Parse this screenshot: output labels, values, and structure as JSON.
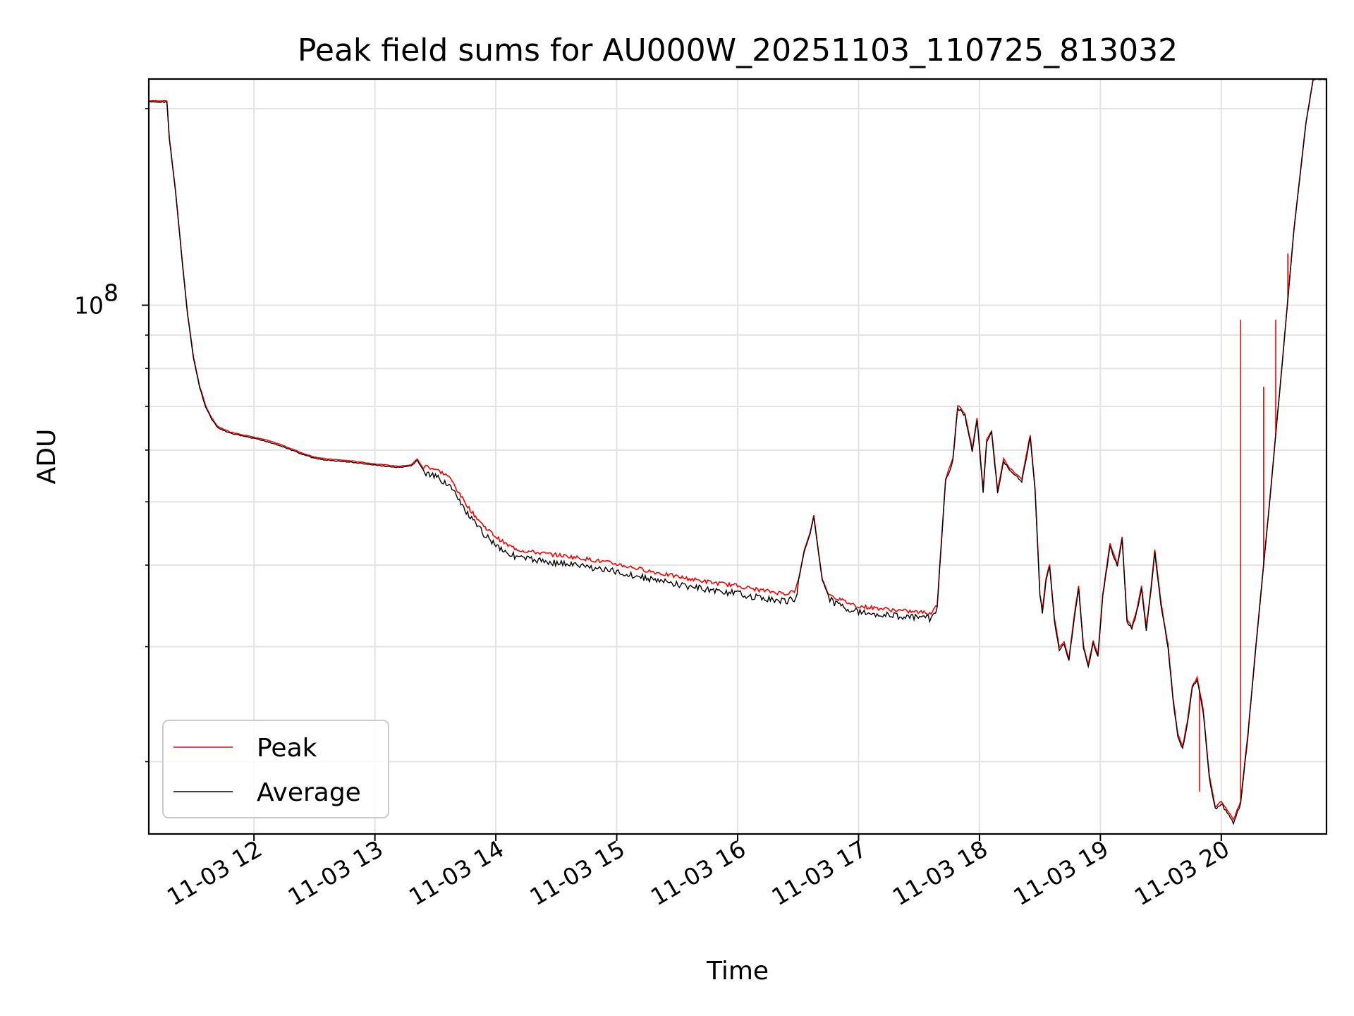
{
  "chart_data": {
    "type": "line",
    "title": "Peak field sums for AU000W_20251103_110725_813032",
    "xlabel": "Time",
    "ylabel": "ADU",
    "yscale": "log",
    "ylim": [
      15500000,
      222000000
    ],
    "xlim": [
      11.13,
      20.87
    ],
    "x_unit": "hour of 2025-11-03",
    "xticks": [
      {
        "value": 12,
        "label": "11-03 12"
      },
      {
        "value": 13,
        "label": "11-03 13"
      },
      {
        "value": 14,
        "label": "11-03 14"
      },
      {
        "value": 15,
        "label": "11-03 15"
      },
      {
        "value": 16,
        "label": "11-03 16"
      },
      {
        "value": 17,
        "label": "11-03 17"
      },
      {
        "value": 18,
        "label": "11-03 18"
      },
      {
        "value": 19,
        "label": "11-03 19"
      },
      {
        "value": 20,
        "label": "11-03 20"
      }
    ],
    "yticks_major": [
      {
        "value": 100000000,
        "label": "10",
        "exp": "8"
      }
    ],
    "yticks_minor": [
      20000000,
      30000000,
      40000000,
      50000000,
      60000000,
      70000000,
      80000000,
      90000000,
      200000000
    ],
    "grid": true,
    "legend_position": "lower-left",
    "legend": [
      {
        "name": "Peak",
        "color": "#ff0000"
      },
      {
        "name": "Average",
        "color": "#000000"
      }
    ],
    "series": [
      {
        "name": "Average",
        "color": "#000000",
        "x": [
          11.13,
          11.28,
          11.3,
          11.35,
          11.4,
          11.45,
          11.5,
          11.55,
          11.6,
          11.65,
          11.7,
          11.8,
          11.9,
          12.0,
          12.1,
          12.2,
          12.3,
          12.4,
          12.5,
          12.6,
          12.8,
          13.0,
          13.2,
          13.3,
          13.35,
          13.4,
          13.5,
          13.6,
          13.65,
          13.7,
          13.8,
          13.9,
          14.0,
          14.1,
          14.2,
          14.4,
          14.6,
          14.8,
          15.0,
          15.2,
          15.4,
          15.6,
          15.8,
          16.0,
          16.2,
          16.4,
          16.48,
          16.55,
          16.6,
          16.63,
          16.66,
          16.7,
          16.75,
          16.8,
          16.9,
          17.0,
          17.2,
          17.4,
          17.6,
          17.65,
          17.68,
          17.72,
          17.78,
          17.82,
          17.88,
          17.94,
          17.98,
          18.03,
          18.06,
          18.1,
          18.15,
          18.2,
          18.25,
          18.3,
          18.35,
          18.42,
          18.46,
          18.5,
          18.52,
          18.55,
          18.58,
          18.62,
          18.66,
          18.7,
          18.74,
          18.78,
          18.82,
          18.86,
          18.9,
          18.94,
          18.98,
          19.02,
          19.08,
          19.14,
          19.18,
          19.22,
          19.26,
          19.3,
          19.34,
          19.38,
          19.42,
          19.45,
          19.5,
          19.56,
          19.6,
          19.64,
          19.68,
          19.72,
          19.76,
          19.8,
          19.85,
          19.9,
          19.95,
          20.0,
          20.05,
          20.1,
          20.16,
          20.22,
          20.3,
          20.4,
          20.5,
          20.6,
          20.7,
          20.76,
          20.87
        ],
        "values": [
          205000000,
          205000000,
          180000000,
          150000000,
          120000000,
          97000000,
          83000000,
          75000000,
          70000000,
          67000000,
          65000000,
          63800000,
          63200000,
          62600000,
          62000000,
          61200000,
          60200000,
          59200000,
          58400000,
          58000000,
          57600000,
          57000000,
          56500000,
          56800000,
          58000000,
          56000000,
          55200000,
          54000000,
          52500000,
          50500000,
          47500000,
          45200000,
          43500000,
          42200000,
          41500000,
          41000000,
          40600000,
          40100000,
          39500000,
          38800000,
          38100000,
          37500000,
          37000000,
          36600000,
          36000000,
          35600000,
          36000000,
          42000000,
          44800000,
          47600000,
          43000000,
          38000000,
          36000000,
          35400000,
          34800000,
          34300000,
          34000000,
          33700000,
          33500000,
          34500000,
          42000000,
          54000000,
          58000000,
          70000000,
          68000000,
          60000000,
          67000000,
          52000000,
          62000000,
          64000000,
          52000000,
          58000000,
          56000000,
          55000000,
          54000000,
          63000000,
          52000000,
          36000000,
          34000000,
          38000000,
          40000000,
          33000000,
          29800000,
          30400000,
          28600000,
          33000000,
          37000000,
          30000000,
          28000000,
          30500000,
          29000000,
          36000000,
          43000000,
          40000000,
          44000000,
          33000000,
          32000000,
          34000000,
          37000000,
          32000000,
          37000000,
          42000000,
          35000000,
          30000000,
          25000000,
          22000000,
          21000000,
          23000000,
          26000000,
          26800000,
          24000000,
          19000000,
          17000000,
          17300000,
          16800000,
          16200000,
          17300000,
          22000000,
          32000000,
          50000000,
          80000000,
          130000000,
          190000000,
          222000000,
          222000000
        ]
      },
      {
        "name": "Peak",
        "color": "#ff0000",
        "note": "tracks Average closely with thin upward spikes; notable spikes listed",
        "spikes": [
          {
            "x": 20.16,
            "value": 95000000
          },
          {
            "x": 20.35,
            "value": 75000000
          },
          {
            "x": 20.45,
            "value": 95000000
          },
          {
            "x": 20.55,
            "value": 120000000
          },
          {
            "x": 19.82,
            "value": 18000000
          }
        ]
      }
    ]
  }
}
